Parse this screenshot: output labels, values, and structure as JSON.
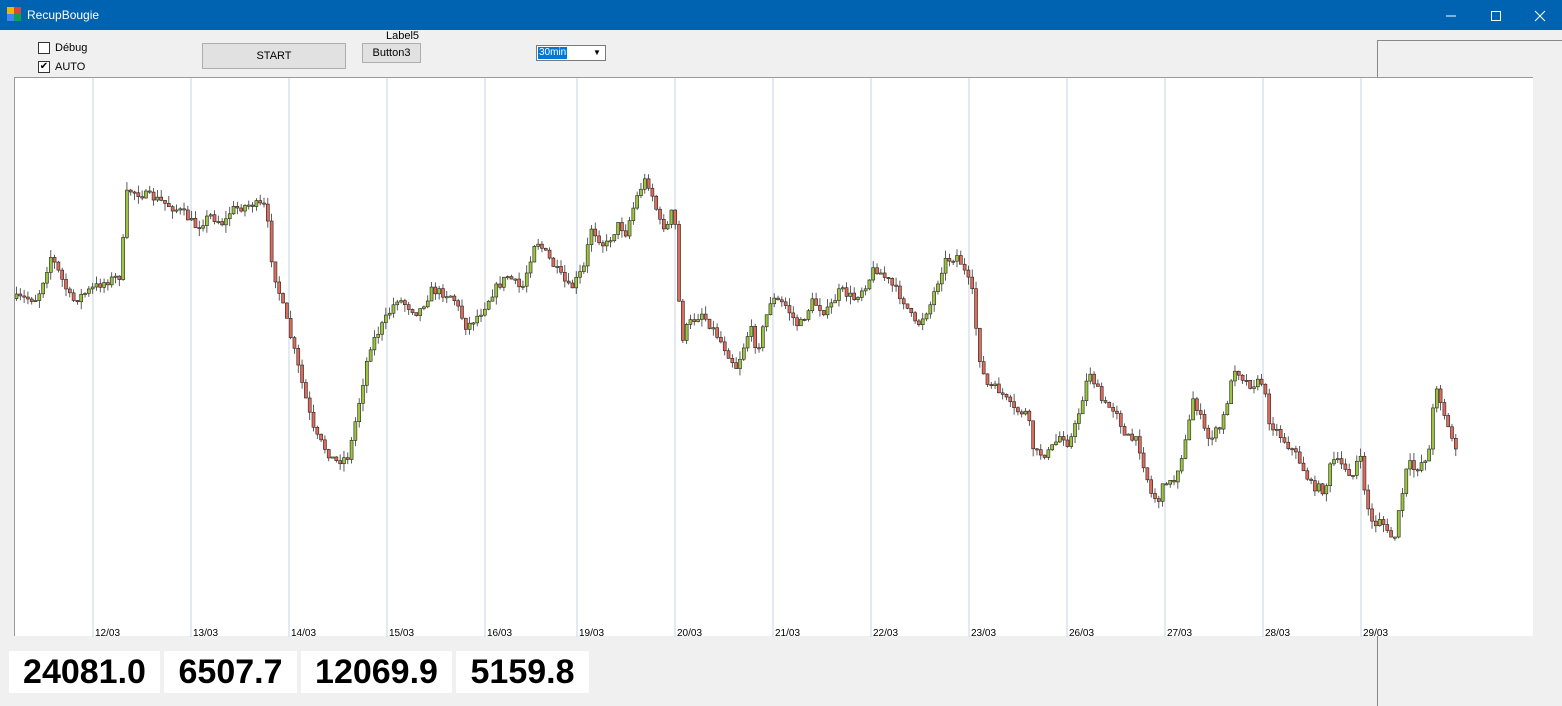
{
  "window": {
    "title": "RecupBougie"
  },
  "controls": {
    "debug_label": "Débug",
    "auto_label": "AUTO",
    "debug_checked": false,
    "auto_checked": true,
    "start_label": "START",
    "label5": "Label5",
    "button3_label": "Button3",
    "timeframe": "30min"
  },
  "prices": [
    "24081.0",
    "6507.7",
    "12069.9",
    "5159.8"
  ],
  "chart_data": {
    "type": "candlestick",
    "x_tick_labels": [
      "12/03",
      "13/03",
      "14/03",
      "15/03",
      "16/03",
      "19/03",
      "20/03",
      "21/03",
      "22/03",
      "23/03",
      "26/03",
      "27/03",
      "28/03",
      "29/03"
    ],
    "grid": "vertical",
    "up_color": "#9bc53d",
    "down_color": "#e06b5b",
    "profile": [
      [
        0,
        63
      ],
      [
        3,
        63
      ],
      [
        5,
        48
      ],
      [
        8,
        64
      ],
      [
        12,
        58
      ],
      [
        15,
        55
      ],
      [
        16,
        25
      ],
      [
        20,
        28
      ],
      [
        24,
        33
      ],
      [
        26,
        38
      ],
      [
        28,
        34
      ],
      [
        30,
        37
      ],
      [
        31,
        32
      ],
      [
        34,
        30
      ],
      [
        36,
        31
      ],
      [
        37,
        52
      ],
      [
        40,
        80
      ],
      [
        43,
        110
      ],
      [
        46,
        120
      ],
      [
        48,
        118
      ],
      [
        51,
        80
      ],
      [
        55,
        63
      ],
      [
        58,
        68
      ],
      [
        60,
        60
      ],
      [
        63,
        62
      ],
      [
        65,
        73
      ],
      [
        67,
        68
      ],
      [
        69,
        60
      ],
      [
        71,
        55
      ],
      [
        73,
        60
      ],
      [
        75,
        42
      ],
      [
        78,
        53
      ],
      [
        80,
        60
      ],
      [
        82,
        52
      ],
      [
        83,
        38
      ],
      [
        85,
        45
      ],
      [
        87,
        37
      ],
      [
        88,
        40
      ],
      [
        89,
        32
      ],
      [
        90,
        25
      ],
      [
        91,
        21
      ],
      [
        92,
        28
      ],
      [
        93,
        37
      ],
      [
        94,
        38
      ],
      [
        95,
        30
      ],
      [
        95.5,
        55
      ],
      [
        96,
        78
      ],
      [
        97,
        72
      ],
      [
        99,
        68
      ],
      [
        101,
        75
      ],
      [
        103,
        83
      ],
      [
        104,
        87
      ],
      [
        106,
        73
      ],
      [
        107,
        81
      ],
      [
        109,
        63
      ],
      [
        111,
        65
      ],
      [
        113,
        73
      ],
      [
        115,
        64
      ],
      [
        117,
        68
      ],
      [
        119,
        60
      ],
      [
        121,
        63
      ],
      [
        123,
        57
      ],
      [
        124,
        52
      ],
      [
        126,
        57
      ],
      [
        128,
        63
      ],
      [
        130,
        73
      ],
      [
        132,
        65
      ],
      [
        134,
        50
      ],
      [
        136,
        48
      ],
      [
        138,
        60
      ],
      [
        139,
        82
      ],
      [
        140,
        93
      ],
      [
        142,
        95
      ],
      [
        144,
        102
      ],
      [
        146,
        103
      ],
      [
        147,
        117
      ],
      [
        149,
        117
      ],
      [
        151,
        110
      ],
      [
        152,
        114
      ],
      [
        153,
        107
      ],
      [
        155,
        88
      ],
      [
        157,
        100
      ],
      [
        159,
        102
      ],
      [
        160,
        111
      ],
      [
        162,
        113
      ],
      [
        164,
        132
      ],
      [
        165,
        133
      ],
      [
        166,
        126
      ],
      [
        167,
        128
      ],
      [
        169,
        112
      ],
      [
        170,
        97
      ],
      [
        172,
        112
      ],
      [
        174,
        108
      ],
      [
        176,
        87
      ],
      [
        178,
        93
      ],
      [
        180,
        92
      ],
      [
        181,
        106
      ],
      [
        183,
        112
      ],
      [
        185,
        118
      ],
      [
        187,
        128
      ],
      [
        189,
        130
      ],
      [
        190,
        119
      ],
      [
        192,
        122
      ],
      [
        193,
        125
      ],
      [
        194,
        117
      ],
      [
        195,
        134
      ],
      [
        196,
        143
      ],
      [
        197,
        139
      ],
      [
        198,
        145
      ],
      [
        199,
        147
      ],
      [
        201,
        120
      ],
      [
        202,
        123
      ],
      [
        204,
        117
      ],
      [
        205,
        92
      ],
      [
        207,
        110
      ],
      [
        208,
        115
      ]
    ]
  }
}
